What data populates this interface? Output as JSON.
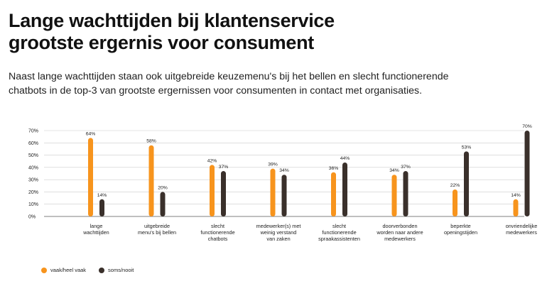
{
  "header": {
    "title_line1": "Lange wachttijden bij klantenservice",
    "title_line2": "grootste ergernis voor consument",
    "subtitle_line1": "Naast lange wachttijden staan ook uitgebreide keuzemenu's bij het bellen en slecht functionerende",
    "subtitle_line2": "chatbots in de top-3 van grootste ergernissen voor consumenten in contact met organisaties."
  },
  "colors": {
    "orange": "#F7941D",
    "dark": "#3A302B",
    "grid": "#CCCCCC"
  },
  "chart_data": {
    "type": "bar",
    "categories": [
      [
        "lange",
        "wachttijden"
      ],
      [
        "uitgebreide",
        "menu's bij bellen"
      ],
      [
        "slecht",
        "functionerende",
        "chatbots"
      ],
      [
        "medewerker(s) met",
        "weinig verstand",
        "van zaken"
      ],
      [
        "slecht",
        "functionerende",
        "spraakassistenten"
      ],
      [
        "doorverbonden",
        "worden naar andere",
        "medewerkers"
      ],
      [
        "beperkte",
        "openingstijden"
      ],
      [
        "onvriendelijke",
        "medewerkers"
      ]
    ],
    "series": [
      {
        "name": "vaak/heel vaak",
        "color": "#F7941D",
        "values": [
          64,
          58,
          42,
          39,
          36,
          34,
          22,
          14
        ]
      },
      {
        "name": "soms/nooit",
        "color": "#3A302B",
        "values": [
          14,
          20,
          37,
          34,
          44,
          37,
          53,
          70
        ]
      }
    ],
    "ylim": [
      0,
      70
    ],
    "yticks": [
      0,
      10,
      20,
      30,
      40,
      50,
      60,
      70
    ],
    "tick_suffix": "%",
    "grid": true,
    "legend_position": "bottom-left"
  }
}
